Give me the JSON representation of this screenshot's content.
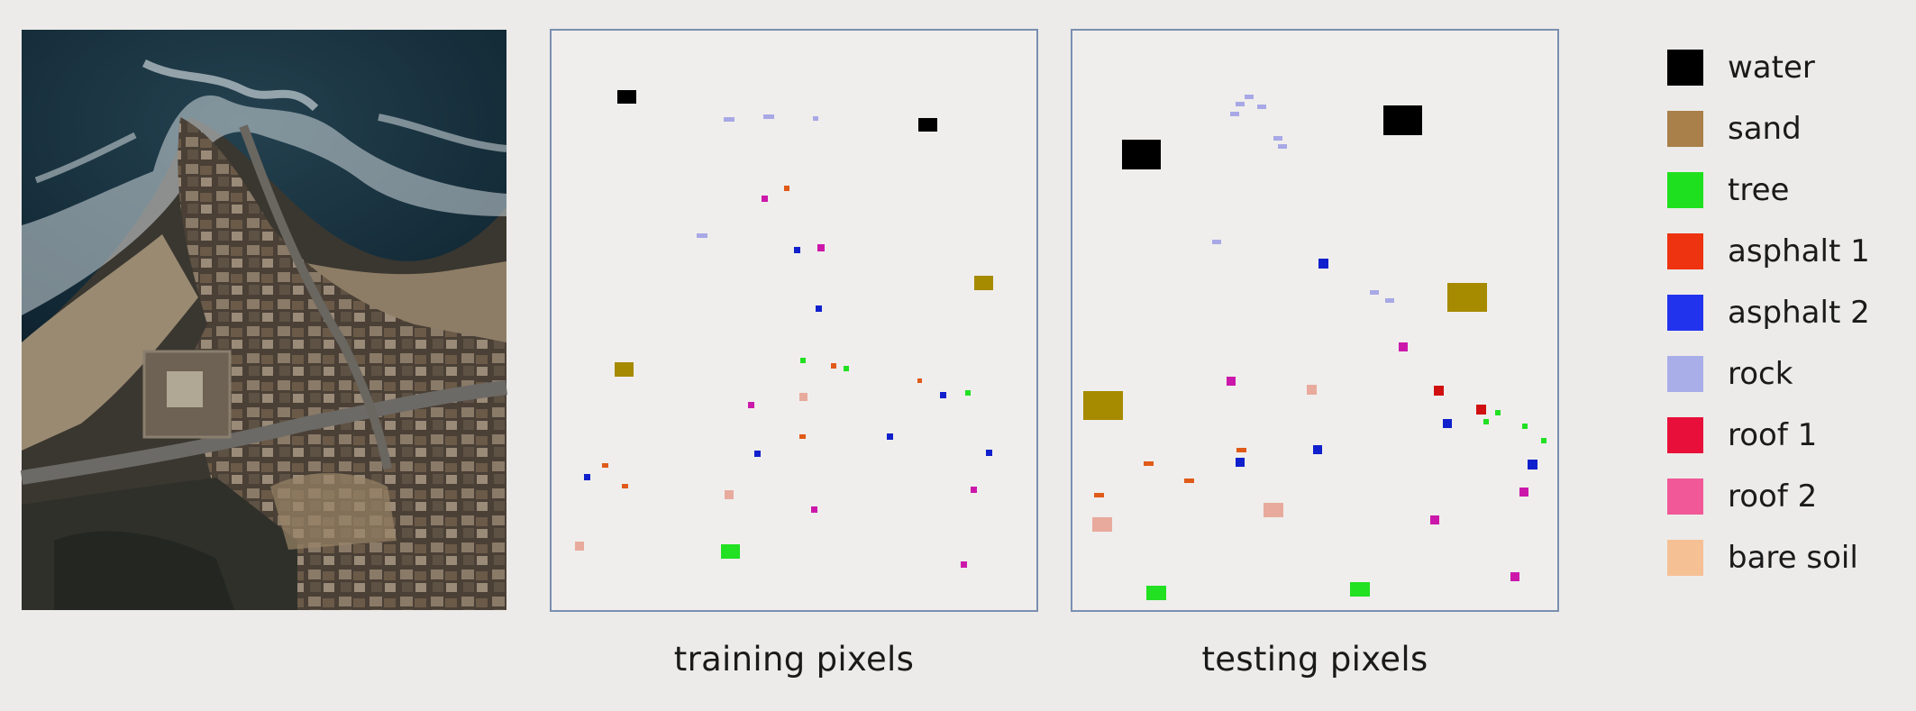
{
  "captions": {
    "training": "training pixels",
    "testing": "testing pixels"
  },
  "legend": [
    {
      "key": "water",
      "label": "water",
      "color": "#000000"
    },
    {
      "key": "sand",
      "label": "sand",
      "color": "#a9804a"
    },
    {
      "key": "tree",
      "label": "tree",
      "color": "#1ee01e"
    },
    {
      "key": "asphalt1",
      "label": "asphalt 1",
      "color": "#ee3310"
    },
    {
      "key": "asphalt2",
      "label": "asphalt 2",
      "color": "#2233ee"
    },
    {
      "key": "rock",
      "label": "rock",
      "color": "#a9aee9"
    },
    {
      "key": "roof1",
      "label": "roof 1",
      "color": "#e8103a"
    },
    {
      "key": "roof2",
      "label": "roof 2",
      "color": "#f05898"
    },
    {
      "key": "baresoil",
      "label": "bare soil",
      "color": "#f6c095"
    }
  ],
  "map_colors": {
    "water": "#000000",
    "sand": "#a68a00",
    "tree": "#22e022",
    "asphalt1": "#e05a18",
    "asphalt2": "#1020cc",
    "rock": "#a8a8e6",
    "roof1": "#d01010",
    "roof2": "#cc18aa",
    "baresoil": "#e8aa9c"
  },
  "frame_color": "#7a8fb0"
}
